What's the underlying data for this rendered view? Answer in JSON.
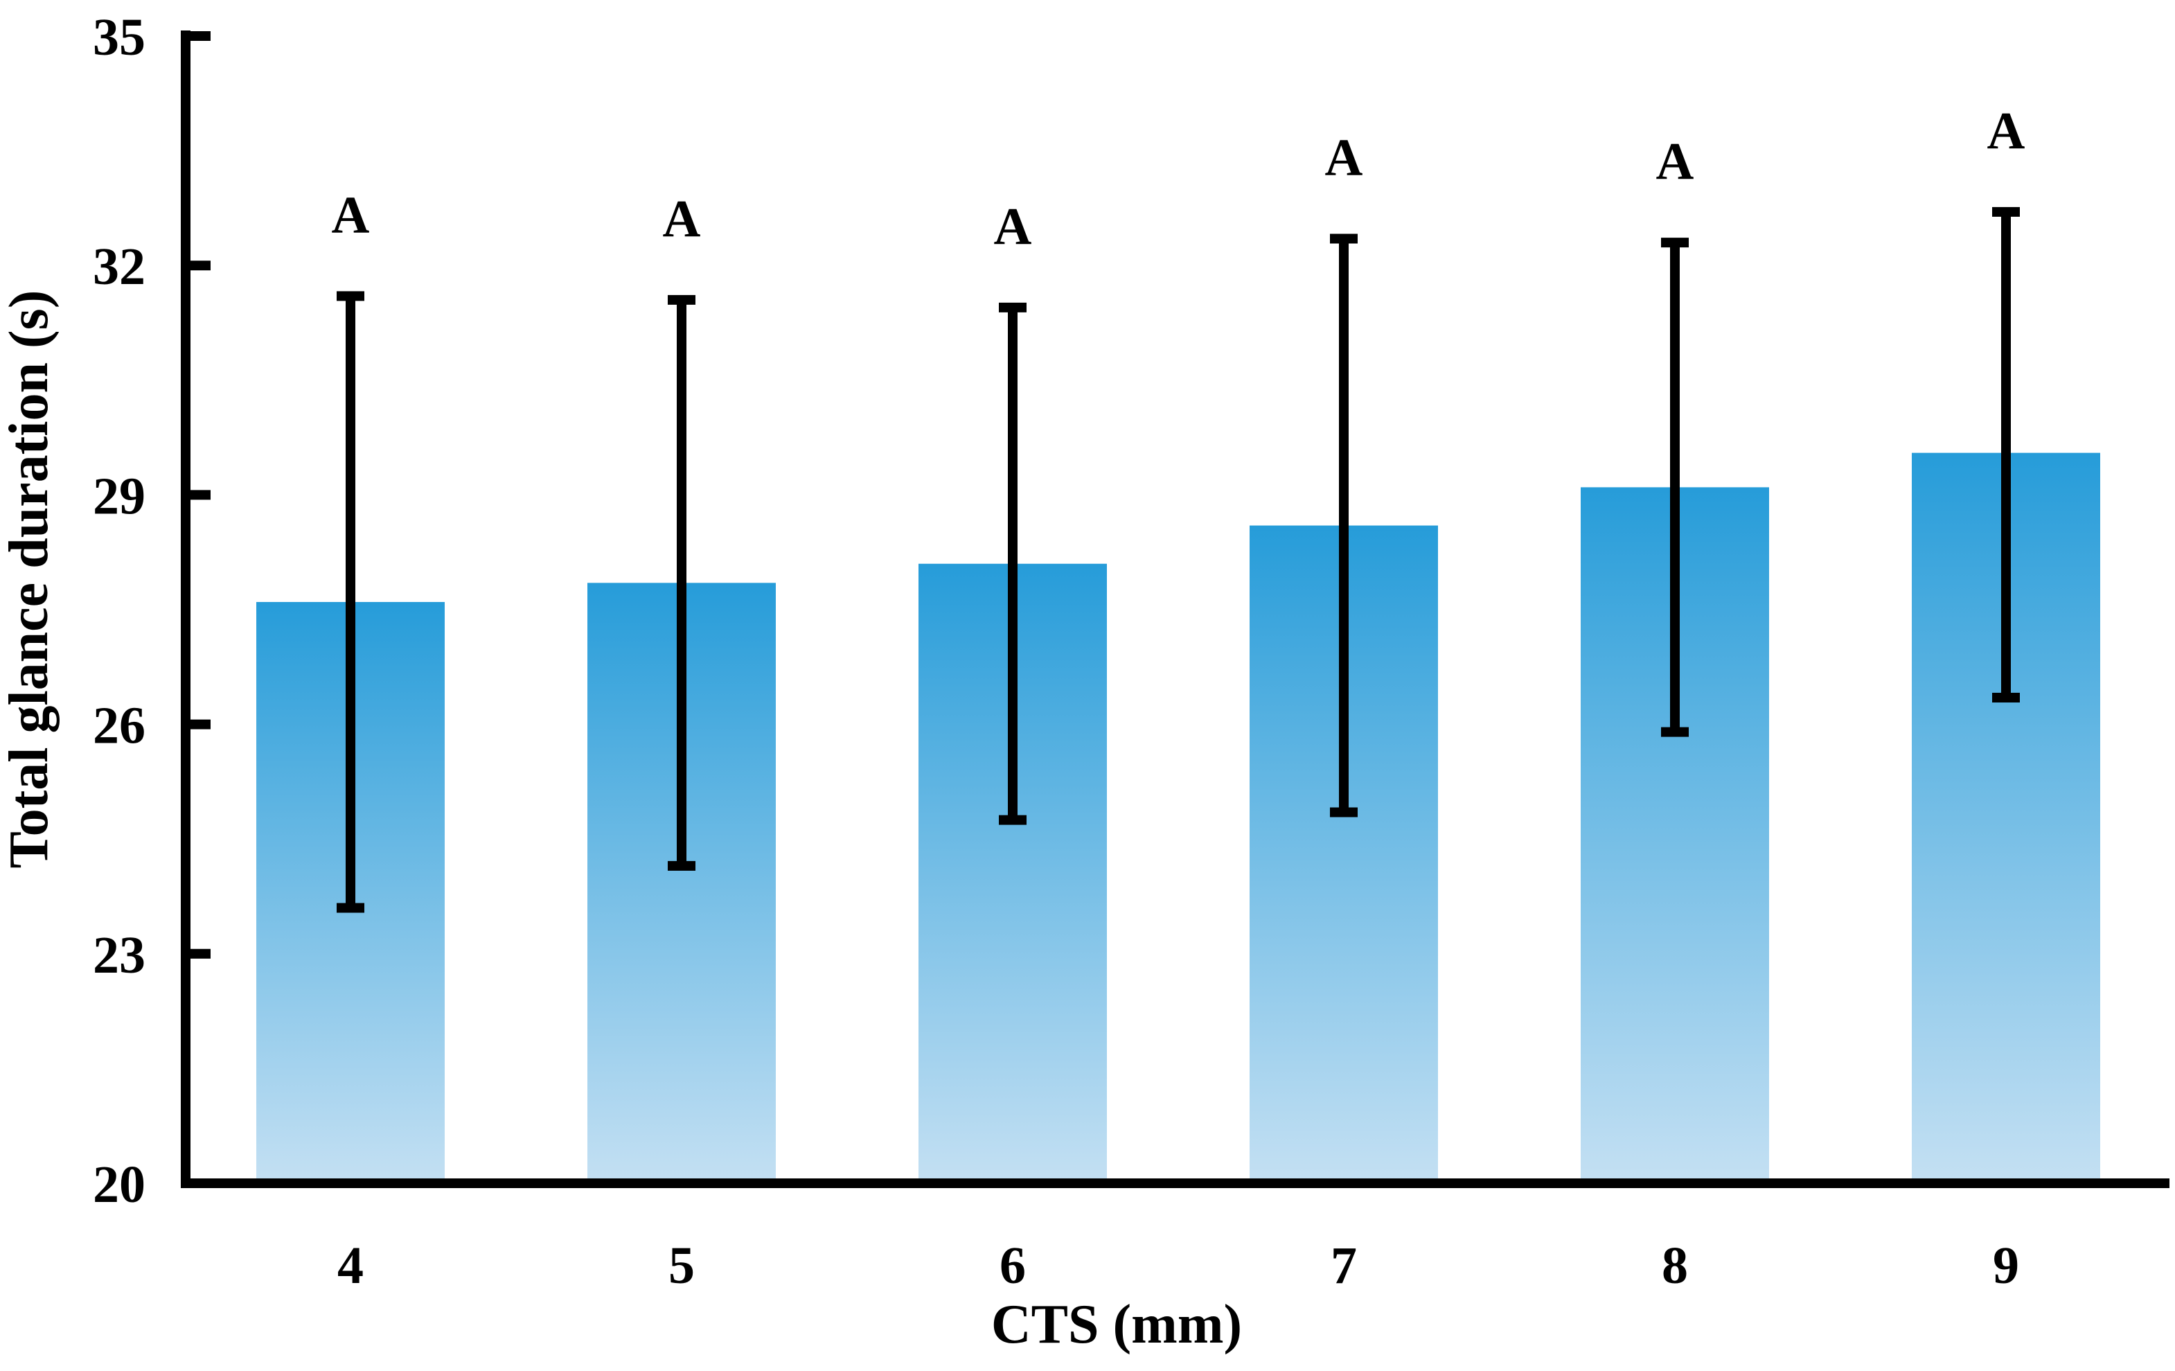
{
  "chart_data": {
    "type": "bar",
    "title": "",
    "xlabel": "CTS (mm)",
    "ylabel": "Total glance duration (s)",
    "categories": [
      "4",
      "5",
      "6",
      "7",
      "8",
      "9"
    ],
    "values": [
      27.6,
      27.85,
      28.1,
      28.6,
      29.1,
      29.55
    ],
    "error_upper": [
      31.6,
      31.55,
      31.45,
      32.35,
      32.3,
      32.7
    ],
    "error_lower": [
      23.6,
      24.15,
      24.75,
      24.85,
      25.9,
      26.35
    ],
    "significance_letters": [
      "A",
      "A",
      "A",
      "A",
      "A",
      "A"
    ],
    "ylim": [
      20,
      35
    ],
    "yticks": [
      20,
      23,
      26,
      29,
      32,
      35
    ],
    "grid": false,
    "legend": "none",
    "colors": {
      "bar_top": "#269CD9",
      "bar_bottom": "#C4E0F3",
      "axis": "#000000",
      "error_bar": "#000000"
    }
  }
}
